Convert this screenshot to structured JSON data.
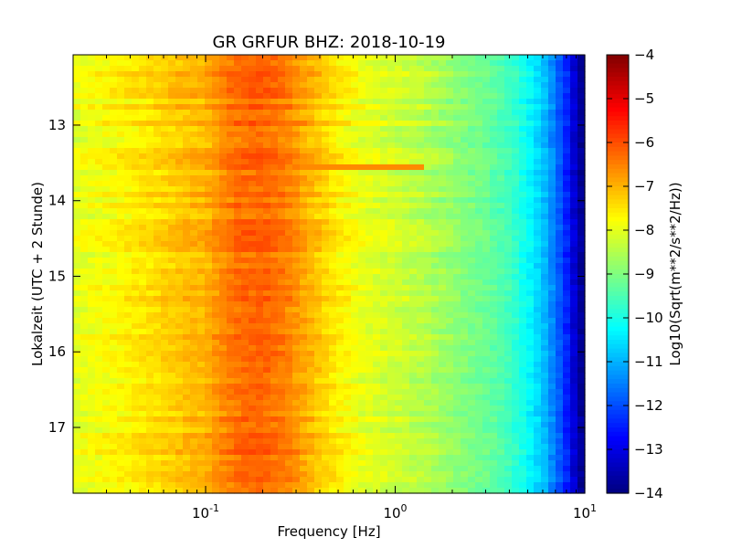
{
  "chart_data": {
    "type": "heatmap",
    "title": "GR GRFUR BHZ: 2018-10-19",
    "xlabel": "Frequency [Hz]",
    "ylabel": "Lokalzeit (UTC + 2 Stunde)",
    "x_scale": "log",
    "xlim": [
      0.02,
      10
    ],
    "x_ticks": [
      {
        "value": 0.1,
        "base": "10",
        "exp": "-1"
      },
      {
        "value": 1,
        "base": "10",
        "exp": "0"
      },
      {
        "value": 10,
        "base": "10",
        "exp": "1"
      }
    ],
    "ylim": [
      12.07,
      17.87
    ],
    "y_inverted": true,
    "y_ticks": [
      13,
      14,
      15,
      16,
      17
    ],
    "colorbar": {
      "label": "Log10(Sqrt(m**2/s**2/Hz))",
      "range": [
        -14,
        -4
      ],
      "ticks": [
        -4,
        -5,
        -6,
        -7,
        -8,
        -9,
        -10,
        -11,
        -12,
        -13,
        -14
      ],
      "colormap": "jet"
    },
    "spectrum_profile": {
      "freq_hz": [
        0.02,
        0.04,
        0.06,
        0.08,
        0.1,
        0.12,
        0.15,
        0.2,
        0.25,
        0.3,
        0.4,
        0.5,
        0.7,
        1.0,
        1.5,
        2.0,
        3.0,
        4.0,
        5.0,
        6.0,
        7.0,
        8.0,
        9.0,
        10.0
      ],
      "level": [
        -8.0,
        -7.6,
        -7.3,
        -7.1,
        -7.0,
        -6.6,
        -6.3,
        -6.2,
        -6.4,
        -6.7,
        -7.2,
        -7.6,
        -8.0,
        -8.2,
        -8.5,
        -8.8,
        -9.2,
        -9.6,
        -10.2,
        -10.8,
        -11.6,
        -12.4,
        -13.4,
        -14.0
      ]
    },
    "annotations": [
      {
        "time_h": 13.57,
        "freq_hz": [
          0.3,
          1.4
        ],
        "level": -6.6
      }
    ]
  }
}
